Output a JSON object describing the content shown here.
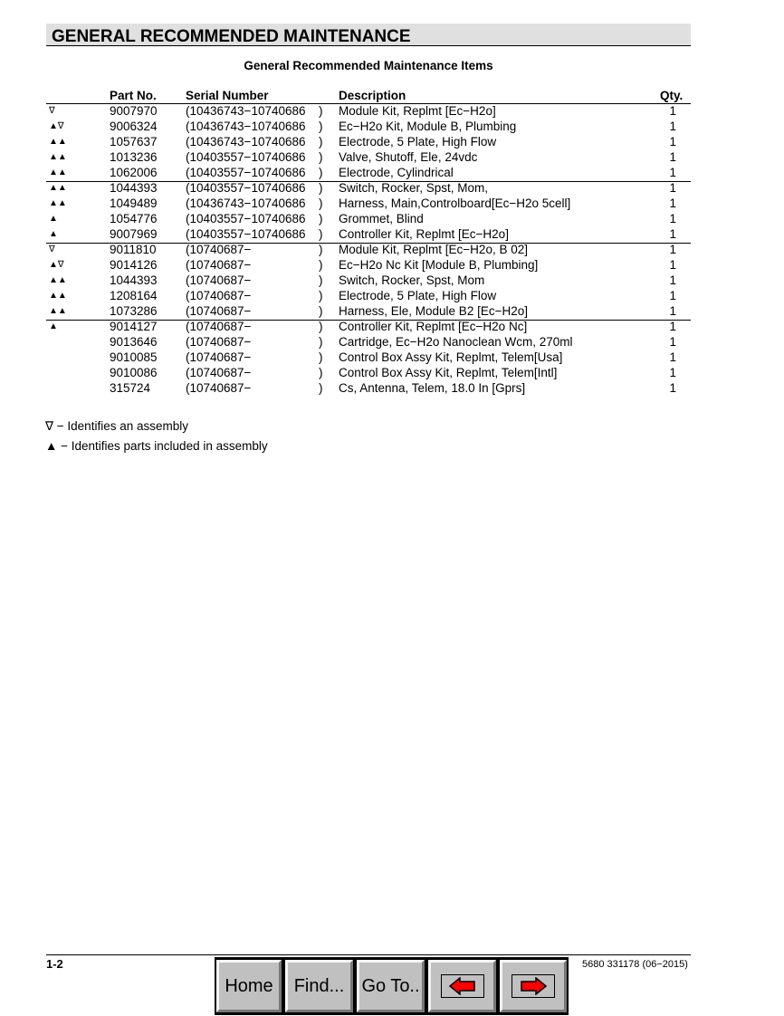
{
  "header": {
    "title": "GENERAL RECOMMENDED MAINTENANCE",
    "subtitle": "General Recommended Maintenance Items"
  },
  "columns": {
    "part": "Part No.",
    "serial": "Serial Number",
    "desc": "Description",
    "qty": "Qty."
  },
  "rows": [
    {
      "sym": "∇",
      "part": "9007970",
      "serial": "(10436743−10740686",
      "close": ")",
      "desc": "Module Kit, Replmt [Ec−H2o]",
      "qty": "1"
    },
    {
      "sym": "▲∇",
      "part": "9006324",
      "serial": "(10436743−10740686",
      "close": ")",
      "desc": "Ec−H2o Kit,  Module B, Plumbing",
      "qty": "1"
    },
    {
      "sym": "▲▲",
      "part": "1057637",
      "serial": "(10436743−10740686",
      "close": ")",
      "desc": "Electrode, 5 Plate, High Flow",
      "qty": "1"
    },
    {
      "sym": "▲▲",
      "part": "1013236",
      "serial": "(10403557−10740686",
      "close": ")",
      "desc": "Valve, Shutoff, Ele, 24vdc",
      "qty": "1"
    },
    {
      "sym": "▲▲",
      "part": "1062006",
      "serial": "(10403557−10740686",
      "close": ")",
      "desc": "Electrode, Cylindrical",
      "qty": "1"
    },
    {
      "sym": "▲▲",
      "part": "1044393",
      "serial": "(10403557−10740686",
      "close": ")",
      "desc": "Switch, Rocker, Spst, Mom,",
      "qty": "1"
    },
    {
      "sym": "▲▲",
      "part": "1049489",
      "serial": "(10436743−10740686",
      "close": ")",
      "desc": "Harness, Main,Controlboard[Ec−H2o 5cell]",
      "qty": "1"
    },
    {
      "sym": "▲",
      "part": "1054776",
      "serial": "(10403557−10740686",
      "close": ")",
      "desc": "Grommet, Blind",
      "qty": "1"
    },
    {
      "sym": "▲",
      "part": "9007969",
      "serial": "(10403557−10740686",
      "close": ")",
      "desc": "Controller Kit, Replmt [Ec−H2o]",
      "qty": "1"
    },
    {
      "sym": "∇",
      "part": "9011810",
      "serial": "(10740687−",
      "close": ")",
      "desc": "Module Kit, Replmt [Ec−H2o, B 02]",
      "qty": "1"
    },
    {
      "sym": "▲∇",
      "part": "9014126",
      "serial": "(10740687−",
      "close": ")",
      "desc": "Ec−H2o Nc Kit [Module B, Plumbing]",
      "qty": "1"
    },
    {
      "sym": "▲▲",
      "part": "1044393",
      "serial": "(10740687−",
      "close": ")",
      "desc": "Switch, Rocker, Spst, Mom",
      "qty": "1"
    },
    {
      "sym": "▲▲",
      "part": "1208164",
      "serial": "(10740687−",
      "close": ")",
      "desc": "Electrode, 5 Plate, High Flow",
      "qty": "1"
    },
    {
      "sym": "▲▲",
      "part": "1073286",
      "serial": "(10740687−",
      "close": ")",
      "desc": "Harness, Ele, Module B2 [Ec−H2o]",
      "qty": "1"
    },
    {
      "sym": "▲",
      "part": "9014127",
      "serial": "(10740687−",
      "close": ")",
      "desc": "Controller Kit, Replmt [Ec−H2o Nc]",
      "qty": "1"
    },
    {
      "sym": "",
      "part": "9013646",
      "serial": "(10740687−",
      "close": ")",
      "desc": "Cartridge, Ec−H2o Nanoclean Wcm, 270ml",
      "qty": "1"
    },
    {
      "sym": "",
      "part": "9010085",
      "serial": "(10740687−",
      "close": ")",
      "desc": "Control Box Assy Kit, Replmt, Telem[Usa]",
      "qty": "1"
    },
    {
      "sym": "",
      "part": "9010086",
      "serial": "(10740687−",
      "close": ")",
      "desc": "Control Box Assy Kit, Replmt, Telem[Intl]",
      "qty": "1"
    },
    {
      "sym": "",
      "part": "315724",
      "serial": "(10740687−",
      "close": ")",
      "desc": "Cs, Antenna, Telem, 18.0 In [Gprs]",
      "qty": "1"
    }
  ],
  "legend": [
    "∇ − Identifies an assembly",
    "▲ − Identifies parts included in assembly"
  ],
  "footer": {
    "page": "1-2",
    "doc": "5680 331178 (06−2015)"
  },
  "nav": {
    "home": "Home",
    "find": "Find...",
    "goto": "Go To..",
    "prev_icon": "left-arrow-icon",
    "next_icon": "right-arrow-icon",
    "arrow_color": "#ff0000"
  }
}
